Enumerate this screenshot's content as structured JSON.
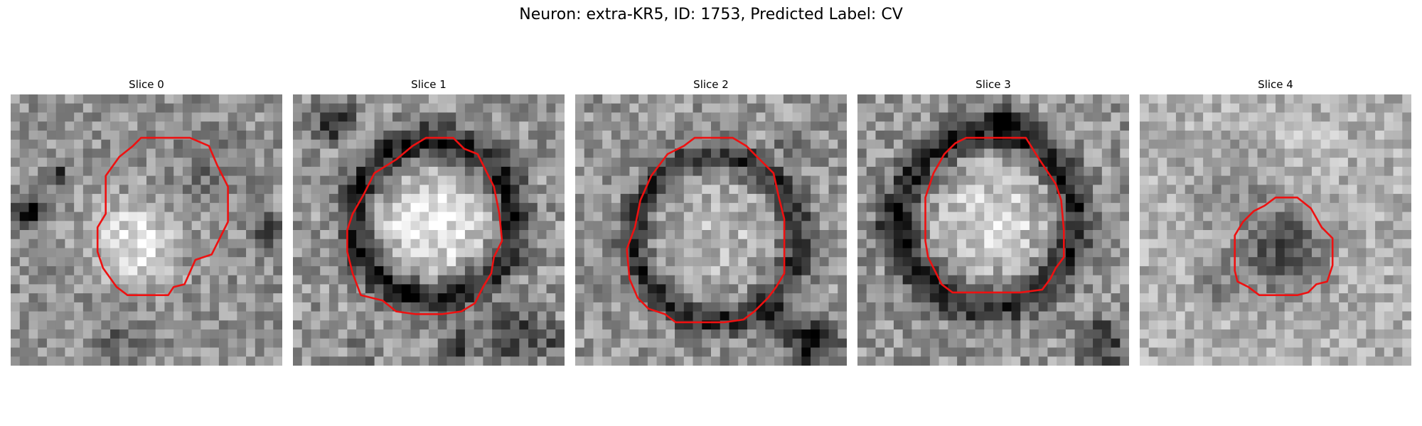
{
  "figure": {
    "title": "Neuron: extra-KR5, ID: 1753, Predicted Label: CV",
    "contour_color": "#ee1111",
    "slices": [
      {
        "title": "Slice 0",
        "bg": 145,
        "spread": 55,
        "ring": null,
        "blobs": [
          [
            0.45,
            0.55,
            0.15,
            90,
            1.0
          ],
          [
            0.07,
            0.43,
            0.06,
            -120,
            1.4
          ],
          [
            0.17,
            0.3,
            0.04,
            -90,
            1.5
          ],
          [
            0.94,
            0.5,
            0.06,
            -70,
            1.5
          ],
          [
            0.4,
            0.9,
            0.1,
            -40,
            1.3
          ],
          [
            0.75,
            0.25,
            0.15,
            -30,
            1.5
          ]
        ],
        "contour": [
          [
            0.48,
            0.16
          ],
          [
            0.66,
            0.16
          ],
          [
            0.73,
            0.19
          ],
          [
            0.76,
            0.26
          ],
          [
            0.8,
            0.34
          ],
          [
            0.8,
            0.47
          ],
          [
            0.77,
            0.53
          ],
          [
            0.74,
            0.59
          ],
          [
            0.68,
            0.61
          ],
          [
            0.64,
            0.7
          ],
          [
            0.6,
            0.71
          ],
          [
            0.58,
            0.74
          ],
          [
            0.49,
            0.74
          ],
          [
            0.43,
            0.74
          ],
          [
            0.39,
            0.71
          ],
          [
            0.34,
            0.64
          ],
          [
            0.32,
            0.58
          ],
          [
            0.32,
            0.49
          ],
          [
            0.35,
            0.44
          ],
          [
            0.35,
            0.3
          ],
          [
            0.4,
            0.23
          ],
          [
            0.45,
            0.19
          ]
        ]
      },
      {
        "title": "Slice 1",
        "bg": 150,
        "spread": 60,
        "ring": [
          0.52,
          0.46,
          0.29,
          0.065,
          -130
        ],
        "blobs": [
          [
            0.52,
            0.48,
            0.2,
            90,
            1.0
          ],
          [
            0.15,
            0.1,
            0.08,
            -110,
            1.5
          ],
          [
            0.8,
            0.88,
            0.1,
            -90,
            1.4
          ],
          [
            0.6,
            0.93,
            0.07,
            -80,
            1.4
          ],
          [
            0.25,
            0.95,
            0.05,
            -60,
            1.5
          ],
          [
            0.95,
            0.9,
            0.06,
            -60,
            1.5
          ]
        ],
        "contour": [
          [
            0.49,
            0.16
          ],
          [
            0.59,
            0.16
          ],
          [
            0.63,
            0.2
          ],
          [
            0.68,
            0.22
          ],
          [
            0.71,
            0.28
          ],
          [
            0.74,
            0.34
          ],
          [
            0.76,
            0.44
          ],
          [
            0.77,
            0.54
          ],
          [
            0.74,
            0.6
          ],
          [
            0.73,
            0.66
          ],
          [
            0.7,
            0.71
          ],
          [
            0.67,
            0.77
          ],
          [
            0.62,
            0.8
          ],
          [
            0.55,
            0.81
          ],
          [
            0.45,
            0.81
          ],
          [
            0.38,
            0.8
          ],
          [
            0.33,
            0.76
          ],
          [
            0.25,
            0.74
          ],
          [
            0.22,
            0.66
          ],
          [
            0.2,
            0.58
          ],
          [
            0.2,
            0.5
          ],
          [
            0.22,
            0.44
          ],
          [
            0.26,
            0.37
          ],
          [
            0.3,
            0.29
          ],
          [
            0.38,
            0.24
          ],
          [
            0.44,
            0.19
          ]
        ]
      },
      {
        "title": "Slice 2",
        "bg": 150,
        "spread": 60,
        "ring": [
          0.52,
          0.53,
          0.3,
          0.06,
          -110
        ],
        "blobs": [
          [
            0.5,
            0.5,
            0.22,
            40,
            1.0
          ],
          [
            0.88,
            0.92,
            0.1,
            -120,
            1.4
          ],
          [
            0.75,
            0.85,
            0.06,
            -80,
            1.5
          ],
          [
            0.8,
            0.18,
            0.05,
            -70,
            1.5
          ]
        ],
        "contour": [
          [
            0.44,
            0.16
          ],
          [
            0.58,
            0.16
          ],
          [
            0.63,
            0.19
          ],
          [
            0.67,
            0.23
          ],
          [
            0.73,
            0.29
          ],
          [
            0.75,
            0.38
          ],
          [
            0.77,
            0.46
          ],
          [
            0.77,
            0.66
          ],
          [
            0.74,
            0.71
          ],
          [
            0.71,
            0.75
          ],
          [
            0.66,
            0.8
          ],
          [
            0.62,
            0.83
          ],
          [
            0.55,
            0.84
          ],
          [
            0.37,
            0.84
          ],
          [
            0.33,
            0.81
          ],
          [
            0.27,
            0.79
          ],
          [
            0.23,
            0.75
          ],
          [
            0.2,
            0.68
          ],
          [
            0.19,
            0.57
          ],
          [
            0.22,
            0.49
          ],
          [
            0.24,
            0.39
          ],
          [
            0.28,
            0.3
          ],
          [
            0.34,
            0.22
          ],
          [
            0.4,
            0.19
          ]
        ]
      },
      {
        "title": "Slice 3",
        "bg": 150,
        "spread": 60,
        "ring": [
          0.48,
          0.46,
          0.32,
          0.07,
          -120
        ],
        "blobs": [
          [
            0.5,
            0.46,
            0.2,
            70,
            1.0
          ],
          [
            0.53,
            0.08,
            0.05,
            -110,
            1.6
          ],
          [
            0.9,
            0.92,
            0.1,
            -90,
            1.4
          ],
          [
            0.13,
            0.5,
            0.08,
            -50,
            1.5
          ]
        ],
        "contour": [
          [
            0.32,
            0.22
          ],
          [
            0.36,
            0.18
          ],
          [
            0.4,
            0.16
          ],
          [
            0.62,
            0.16
          ],
          [
            0.67,
            0.24
          ],
          [
            0.73,
            0.33
          ],
          [
            0.75,
            0.39
          ],
          [
            0.76,
            0.5
          ],
          [
            0.76,
            0.6
          ],
          [
            0.73,
            0.64
          ],
          [
            0.71,
            0.68
          ],
          [
            0.68,
            0.72
          ],
          [
            0.6,
            0.73
          ],
          [
            0.35,
            0.73
          ],
          [
            0.31,
            0.7
          ],
          [
            0.29,
            0.66
          ],
          [
            0.26,
            0.6
          ],
          [
            0.25,
            0.54
          ],
          [
            0.25,
            0.38
          ],
          [
            0.28,
            0.29
          ]
        ]
      },
      {
        "title": "Slice 4",
        "bg": 175,
        "spread": 50,
        "ring": null,
        "blobs": [
          [
            0.53,
            0.58,
            0.16,
            -95,
            1.2
          ],
          [
            0.35,
            0.35,
            0.2,
            -25,
            1.5
          ],
          [
            0.3,
            0.7,
            0.1,
            -40,
            1.5
          ],
          [
            0.6,
            0.2,
            0.15,
            15,
            1.5
          ]
        ],
        "contour": [
          [
            0.5,
            0.38
          ],
          [
            0.58,
            0.38
          ],
          [
            0.63,
            0.42
          ],
          [
            0.67,
            0.49
          ],
          [
            0.71,
            0.53
          ],
          [
            0.71,
            0.63
          ],
          [
            0.69,
            0.69
          ],
          [
            0.65,
            0.7
          ],
          [
            0.62,
            0.73
          ],
          [
            0.58,
            0.74
          ],
          [
            0.44,
            0.74
          ],
          [
            0.4,
            0.71
          ],
          [
            0.36,
            0.69
          ],
          [
            0.35,
            0.65
          ],
          [
            0.35,
            0.52
          ],
          [
            0.38,
            0.47
          ],
          [
            0.42,
            0.43
          ],
          [
            0.46,
            0.41
          ]
        ]
      }
    ]
  }
}
